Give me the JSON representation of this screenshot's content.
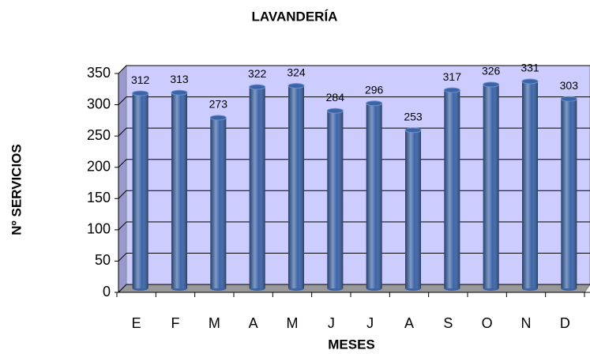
{
  "chart_data": {
    "type": "bar",
    "title": "LAVANDERÍA",
    "x_label": "MESES",
    "y_label": "Nº SERVICIOS",
    "categories": [
      "E",
      "F",
      "M",
      "A",
      "M",
      "J",
      "J",
      "A",
      "S",
      "O",
      "N",
      "D"
    ],
    "values": [
      312,
      313,
      273,
      322,
      324,
      284,
      296,
      253,
      317,
      326,
      331,
      303
    ],
    "color": "#3b64a8",
    "ylim": [
      0,
      350
    ],
    "yticks": [
      0,
      50,
      100,
      150,
      200,
      250,
      300,
      350
    ],
    "grid": true
  }
}
